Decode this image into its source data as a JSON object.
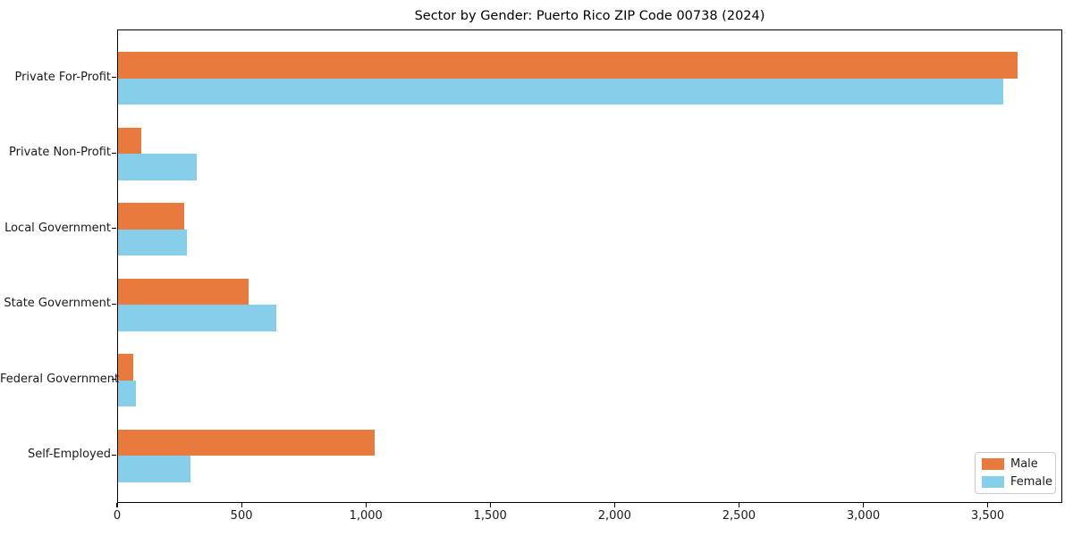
{
  "title": "Sector by Gender: Puerto Rico ZIP Code 00738 (2024)",
  "colors": {
    "male": "#e87a3e",
    "female": "#87ceeb",
    "spine": "#000000",
    "legend_border": "#cccccc",
    "background": "#ffffff"
  },
  "legend": {
    "position": "lower right",
    "items": [
      {
        "label": "Male",
        "color": "#e87a3e"
      },
      {
        "label": "Female",
        "color": "#87ceeb"
      }
    ]
  },
  "chart_data": {
    "type": "bar",
    "orientation": "horizontal",
    "title": "Sector by Gender: Puerto Rico ZIP Code 00738 (2024)",
    "categories": [
      "Private For-Profit",
      "Private Non-Profit",
      "Local Government",
      "State Government",
      "Federal Government",
      "Self-Employed"
    ],
    "series": [
      {
        "name": "Male",
        "color": "#e87a3e",
        "values": [
          3615,
          95,
          265,
          525,
          60,
          1030
        ]
      },
      {
        "name": "Female",
        "color": "#87ceeb",
        "values": [
          3560,
          315,
          275,
          635,
          70,
          290
        ]
      }
    ],
    "xlabel": "",
    "ylabel": "",
    "xlim": [
      0,
      3800
    ],
    "xticks": [
      0,
      500,
      1000,
      1500,
      2000,
      2500,
      3000,
      3500
    ],
    "xtick_labels": [
      "0",
      "500",
      "1,000",
      "1,500",
      "2,000",
      "2,500",
      "3,000",
      "3,500"
    ],
    "grid": false,
    "legend_position": "lower right",
    "bar_height_fraction": 0.35
  }
}
